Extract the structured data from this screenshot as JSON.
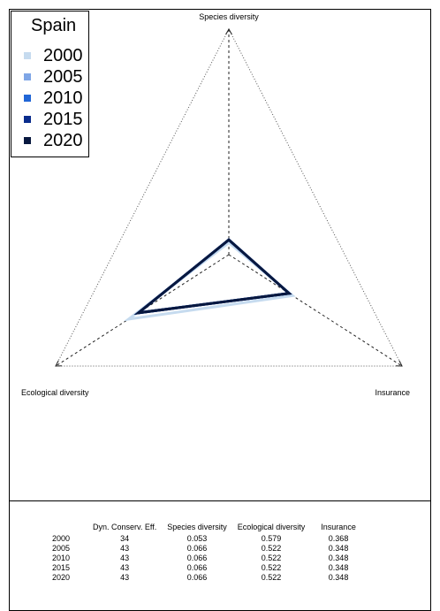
{
  "chart_data": {
    "type": "radar",
    "axes": [
      "Species diversity",
      "Insurance",
      "Ecological diversity"
    ],
    "axis_max": 1,
    "series": [
      {
        "name": "2000",
        "color": "#c6dbef",
        "values": [
          0.053,
          0.368,
          0.579
        ]
      },
      {
        "name": "2005",
        "color": "#7fa6e6",
        "values": [
          0.066,
          0.348,
          0.522
        ]
      },
      {
        "name": "2010",
        "color": "#2166d6",
        "values": [
          0.066,
          0.348,
          0.522
        ]
      },
      {
        "name": "2015",
        "color": "#0a2c8c",
        "values": [
          0.066,
          0.348,
          0.522
        ]
      },
      {
        "name": "2020",
        "color": "#08183f",
        "values": [
          0.066,
          0.348,
          0.522
        ]
      }
    ]
  },
  "legend": {
    "title": "Spain",
    "items": [
      {
        "label": "2000",
        "color": "#c6dbef"
      },
      {
        "label": "2005",
        "color": "#7fa6e6"
      },
      {
        "label": "2010",
        "color": "#2166d6"
      },
      {
        "label": "2015",
        "color": "#0a2c8c"
      },
      {
        "label": "2020",
        "color": "#08183f"
      }
    ]
  },
  "labels": {
    "top": "Species diversity",
    "left": "Ecological diversity",
    "right": "Insurance"
  },
  "table": {
    "headers": [
      "",
      "Dyn. Conserv. Eff.",
      "Species diversity",
      "Ecological diversity",
      "Insurance"
    ],
    "rows": [
      [
        "2000",
        "34",
        "0.053",
        "0.579",
        "0.368"
      ],
      [
        "2005",
        "43",
        "0.066",
        "0.522",
        "0.348"
      ],
      [
        "2010",
        "43",
        "0.066",
        "0.522",
        "0.348"
      ],
      [
        "2015",
        "43",
        "0.066",
        "0.522",
        "0.348"
      ],
      [
        "2020",
        "43",
        "0.066",
        "0.522",
        "0.348"
      ]
    ]
  }
}
